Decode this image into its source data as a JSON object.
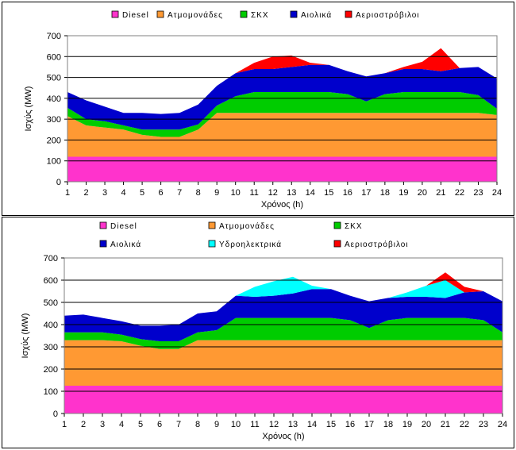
{
  "chart_data": [
    {
      "type": "area",
      "title": "",
      "xlabel": "Χρόνος (h)",
      "ylabel": "Ισχύς (MW)",
      "ylim": [
        0,
        700
      ],
      "yticks": [
        0,
        100,
        200,
        300,
        400,
        500,
        600,
        700
      ],
      "grid": true,
      "legend_position": "top",
      "categories": [
        "1",
        "2",
        "3",
        "4",
        "5",
        "6",
        "7",
        "8",
        "9",
        "10",
        "11",
        "12",
        "13",
        "14",
        "15",
        "16",
        "17",
        "18",
        "19",
        "20",
        "21",
        "22",
        "23",
        "24"
      ],
      "series": [
        {
          "name": "Diesel",
          "color": "#FF33CC",
          "values": [
            120,
            120,
            120,
            120,
            120,
            120,
            120,
            120,
            120,
            120,
            120,
            120,
            120,
            120,
            120,
            120,
            120,
            120,
            120,
            120,
            120,
            120,
            120,
            120
          ]
        },
        {
          "name": "Ατμομονάδες",
          "color": "#FF9933",
          "values": [
            195,
            150,
            140,
            130,
            105,
            95,
            95,
            130,
            210,
            210,
            210,
            210,
            210,
            210,
            210,
            210,
            210,
            210,
            210,
            210,
            210,
            210,
            210,
            200
          ]
        },
        {
          "name": "ΣΚΧ",
          "color": "#00CC00",
          "values": [
            40,
            30,
            30,
            20,
            25,
            35,
            35,
            25,
            35,
            80,
            100,
            100,
            100,
            100,
            100,
            90,
            55,
            90,
            100,
            100,
            100,
            100,
            85,
            30
          ]
        },
        {
          "name": "Αιολικά",
          "color": "#0000CC",
          "values": [
            75,
            90,
            70,
            60,
            80,
            75,
            80,
            95,
            95,
            110,
            110,
            110,
            120,
            130,
            130,
            110,
            120,
            100,
            110,
            110,
            100,
            115,
            135,
            145
          ]
        },
        {
          "name": "Αεριοστρόβιλοι",
          "color": "#FF0000",
          "values": [
            0,
            0,
            0,
            0,
            0,
            0,
            0,
            0,
            0,
            0,
            30,
            60,
            55,
            10,
            0,
            0,
            0,
            0,
            10,
            35,
            110,
            0,
            0,
            0
          ]
        }
      ]
    },
    {
      "type": "area",
      "title": "",
      "xlabel": "Χρόνος (h)",
      "ylabel": "Ισχύς (MW)",
      "ylim": [
        0,
        700
      ],
      "yticks": [
        0,
        100,
        200,
        300,
        400,
        500,
        600,
        700
      ],
      "grid": true,
      "legend_position": "top",
      "categories": [
        "1",
        "2",
        "3",
        "4",
        "5",
        "6",
        "7",
        "8",
        "9",
        "10",
        "11",
        "12",
        "13",
        "14",
        "15",
        "16",
        "17",
        "18",
        "19",
        "20",
        "21",
        "22",
        "23",
        "24"
      ],
      "series": [
        {
          "name": "Diesel",
          "color": "#FF33CC",
          "values": [
            125,
            125,
            125,
            125,
            125,
            125,
            125,
            125,
            125,
            125,
            125,
            125,
            125,
            125,
            125,
            125,
            125,
            125,
            125,
            125,
            125,
            125,
            125,
            125
          ]
        },
        {
          "name": "Ατμομονάδες",
          "color": "#FF9933",
          "values": [
            205,
            205,
            205,
            200,
            180,
            165,
            165,
            205,
            205,
            205,
            205,
            205,
            205,
            205,
            205,
            205,
            205,
            205,
            205,
            205,
            205,
            205,
            205,
            205
          ]
        },
        {
          "name": "ΣΚΧ",
          "color": "#00CC00",
          "values": [
            35,
            35,
            35,
            30,
            30,
            35,
            35,
            35,
            45,
            100,
            100,
            100,
            100,
            100,
            100,
            90,
            55,
            90,
            100,
            100,
            100,
            100,
            90,
            35
          ]
        },
        {
          "name": "Αιολικά",
          "color": "#0000CC",
          "values": [
            75,
            80,
            65,
            60,
            60,
            70,
            75,
            85,
            85,
            100,
            95,
            100,
            110,
            130,
            130,
            110,
            120,
            100,
            95,
            95,
            90,
            115,
            130,
            140
          ]
        },
        {
          "name": "Υδροηλεκτρικά",
          "color": "#00FFFF",
          "values": [
            0,
            0,
            0,
            0,
            0,
            0,
            0,
            0,
            0,
            0,
            45,
            65,
            75,
            15,
            0,
            0,
            0,
            0,
            20,
            50,
            80,
            0,
            0,
            0
          ]
        },
        {
          "name": "Αεριοστρόβιλοι",
          "color": "#FF0000",
          "values": [
            0,
            0,
            0,
            0,
            0,
            0,
            0,
            0,
            0,
            0,
            0,
            0,
            0,
            0,
            0,
            0,
            0,
            0,
            0,
            0,
            35,
            25,
            0,
            0
          ]
        }
      ]
    }
  ]
}
